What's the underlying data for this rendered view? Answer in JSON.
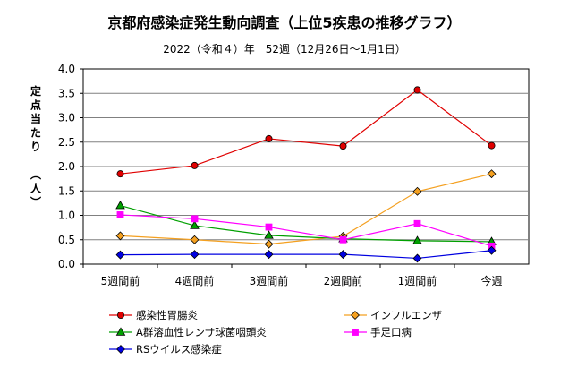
{
  "chart_data": {
    "type": "line",
    "title": "京都府感染症発生動向調査（上位5疾患の推移グラフ）",
    "subtitle": "2022（令和４）年　52週（12月26日～1月1日）",
    "ylabel": "定点当たり　（人）",
    "xlabel": "",
    "categories": [
      "5週間前",
      "4週間前",
      "3週間前",
      "2週間前",
      "1週間前",
      "今週"
    ],
    "ylim": [
      0,
      4.0
    ],
    "yticks": [
      "0.0",
      "0.5",
      "1.0",
      "1.5",
      "2.0",
      "2.5",
      "3.0",
      "3.5",
      "4.0"
    ],
    "grid": true,
    "legend_position": "bottom",
    "series": [
      {
        "name": "感染性胃腸炎",
        "color": "#e00000",
        "marker": "circle",
        "values": [
          1.85,
          2.02,
          2.57,
          2.42,
          3.57,
          2.43
        ]
      },
      {
        "name": "インフルエンザ",
        "color": "#f4a020",
        "marker": "diamond",
        "values": [
          0.58,
          0.5,
          0.41,
          0.57,
          1.49,
          1.85
        ]
      },
      {
        "name": "A群溶血性レンサ球菌咽頭炎",
        "color": "#00a000",
        "marker": "triangle",
        "values": [
          1.2,
          0.79,
          0.59,
          0.52,
          0.48,
          0.46
        ]
      },
      {
        "name": "手足口病",
        "color": "#ff00ff",
        "marker": "square",
        "values": [
          1.01,
          0.93,
          0.76,
          0.5,
          0.83,
          0.37
        ]
      },
      {
        "name": "RSウイルス感染症",
        "color": "#0000e0",
        "marker": "diamond",
        "values": [
          0.19,
          0.2,
          0.2,
          0.2,
          0.12,
          0.28
        ]
      }
    ]
  }
}
